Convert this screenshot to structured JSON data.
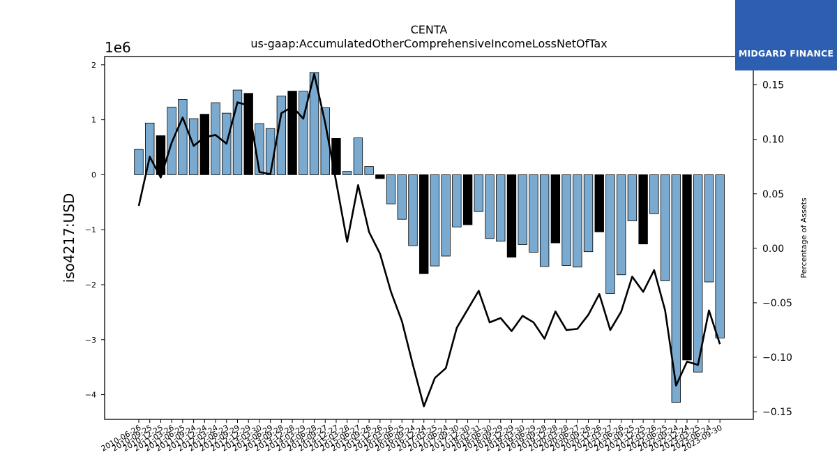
{
  "colors": {
    "bar_normal": "#7aaad0",
    "bar_highlight": "#000000",
    "line": "#000000",
    "logo_bg": "#2d5fb0"
  },
  "logo": {
    "text": "MIDGARD FINANCE",
    "icon": "midgard-logo-icon"
  },
  "chart_data": {
    "type": "bar",
    "title": "CENTA",
    "subtitle": "us-gaap:AccumulatedOtherComprehensiveIncomeLossNetOfTax",
    "ylabel": "iso4217:USD",
    "y2label": "Percentage of Assets",
    "y_exponent_label": "1e6",
    "ylim": [
      -4.45,
      2.15
    ],
    "y2lim": [
      -0.157,
      0.176
    ],
    "yticks": [
      -4,
      -3,
      -2,
      -1,
      0,
      1,
      2
    ],
    "y2ticks": [
      -0.15,
      -0.1,
      -0.05,
      0.0,
      0.05,
      0.1,
      0.15
    ],
    "ytick_labels": [
      "−4",
      "−3",
      "−2",
      "−1",
      "0",
      "1",
      "2"
    ],
    "y2tick_labels": [
      "−0.15",
      "−0.10",
      "−0.05",
      "0.00",
      "0.05",
      "0.10",
      "0.15"
    ],
    "grid": false,
    "categories": [
      "2010-06-26",
      "2010-09-25",
      "2010-12-25",
      "2011-03-26",
      "2011-06-25",
      "2011-09-24",
      "2011-12-24",
      "2012-03-24",
      "2012-06-23",
      "2012-09-29",
      "2012-12-29",
      "2013-03-30",
      "2013-06-29",
      "2013-09-28",
      "2013-12-28",
      "2014-03-29",
      "2014-06-28",
      "2014-09-27",
      "2014-12-27",
      "2015-03-28",
      "2015-06-27",
      "2015-09-26",
      "2015-12-26",
      "2016-03-26",
      "2016-06-25",
      "2016-09-24",
      "2016-12-24",
      "2017-03-25",
      "2017-06-24",
      "2017-09-30",
      "2017-12-30",
      "2018-03-31",
      "2018-06-30",
      "2018-09-29",
      "2018-12-29",
      "2019-03-30",
      "2019-06-29",
      "2019-09-28",
      "2019-12-28",
      "2020-03-28",
      "2020-06-27",
      "2020-09-26",
      "2020-12-26",
      "2021-03-27",
      "2021-06-26",
      "2021-09-25",
      "2021-12-25",
      "2022-03-26",
      "2022-06-25",
      "2022-09-24",
      "2022-12-24",
      "2023-03-25",
      "2023-06-24",
      "2023-09-30"
    ],
    "xtick_labels": [
      "2010-06-26",
      "2010-09-25",
      "2010-12-25",
      "2011-03-26",
      "2011-06-25",
      "2011-09-24",
      "2011-12-24",
      "2012-03-24",
      "2012-06-23",
      "2012-09-29",
      "2012-12-29",
      "2013-03-30",
      "2013-06-29",
      "2013-09-28",
      "2013-12-28",
      "2014-03-29",
      "2014-06-28",
      "2014-09-27",
      "2014-12-27",
      "2015-03-28",
      "2015-06-27",
      "2015-09-26",
      "2015-12-26",
      "2016-03-26",
      "2016-06-25",
      "2016-09-24",
      "2016-12-24",
      "2017-03-25",
      "2017-06-24",
      "2017-09-30",
      "2017-12-30",
      "2018-03-31",
      "2018-06-30",
      "2018-09-29",
      "2018-12-29",
      "2019-03-30",
      "2019-06-29",
      "2019-09-28",
      "2019-12-28",
      "2020-03-28",
      "2020-06-27",
      "2020-09-26",
      "2020-12-26",
      "2021-03-27",
      "2021-06-26",
      "2021-09-25",
      "2021-12-25",
      "2022-03-26",
      "2022-06-25",
      "2022-09-24",
      "2022-12-24",
      "2023-03-25",
      "2023-06-24",
      "2023-09-30"
    ],
    "series": [
      {
        "type": "bar",
        "axis": "left",
        "values": [
          0.46,
          0.94,
          0.71,
          1.23,
          1.37,
          1.02,
          1.1,
          1.31,
          1.12,
          1.54,
          1.48,
          0.93,
          0.84,
          1.43,
          1.52,
          1.52,
          1.86,
          1.22,
          0.66,
          0.06,
          0.67,
          0.15,
          -0.07,
          -0.53,
          -0.81,
          -1.29,
          -1.8,
          -1.66,
          -1.48,
          -0.95,
          -0.91,
          -0.67,
          -1.16,
          -1.21,
          -1.5,
          -1.27,
          -1.41,
          -1.67,
          -1.24,
          -1.65,
          -1.68,
          -1.4,
          -1.04,
          -2.16,
          -1.82,
          -0.84,
          -1.26,
          -0.71,
          -1.93,
          -4.14,
          -3.37,
          -3.59,
          -1.95,
          -2.97
        ],
        "highlight": [
          false,
          false,
          true,
          false,
          false,
          false,
          true,
          false,
          false,
          false,
          true,
          false,
          false,
          false,
          true,
          false,
          false,
          false,
          true,
          false,
          false,
          false,
          true,
          false,
          false,
          false,
          true,
          false,
          false,
          false,
          true,
          false,
          false,
          false,
          true,
          false,
          false,
          false,
          true,
          false,
          false,
          false,
          true,
          false,
          false,
          false,
          true,
          false,
          false,
          false,
          true,
          false,
          false,
          false
        ]
      },
      {
        "type": "line",
        "axis": "right",
        "values": [
          0.039,
          0.084,
          0.065,
          0.097,
          0.12,
          0.094,
          0.102,
          0.104,
          0.096,
          0.134,
          0.131,
          0.07,
          0.068,
          0.124,
          0.13,
          0.119,
          0.16,
          0.115,
          0.061,
          0.006,
          0.058,
          0.015,
          -0.005,
          -0.04,
          -0.067,
          -0.107,
          -0.145,
          -0.119,
          -0.11,
          -0.073,
          -0.056,
          -0.039,
          -0.068,
          -0.064,
          -0.076,
          -0.062,
          -0.068,
          -0.083,
          -0.058,
          -0.075,
          -0.074,
          -0.061,
          -0.042,
          -0.075,
          -0.058,
          -0.026,
          -0.04,
          -0.02,
          -0.057,
          -0.126,
          -0.104,
          -0.107,
          -0.057,
          -0.088
        ]
      }
    ]
  }
}
